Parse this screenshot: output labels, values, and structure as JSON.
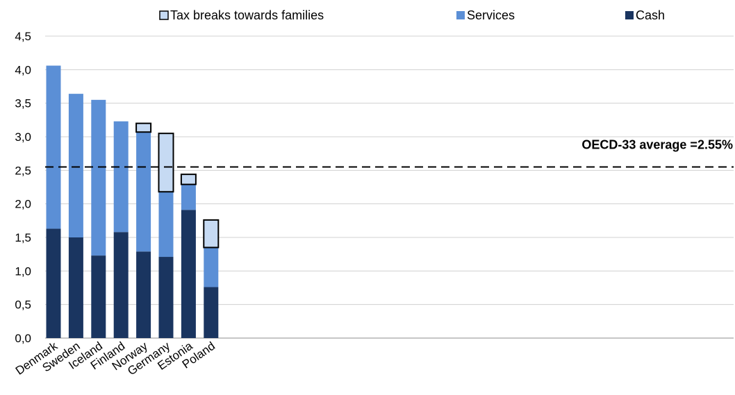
{
  "chart_data": {
    "type": "bar",
    "stacked": true,
    "categories": [
      "Denmark",
      "Sweden",
      "Iceland",
      "Finland",
      "Norway",
      "Germany",
      "Estonia",
      "Poland"
    ],
    "series": [
      {
        "name": "Cash",
        "color": "#1a3560",
        "values": [
          1.63,
          1.5,
          1.23,
          1.58,
          1.29,
          1.21,
          1.91,
          0.76
        ]
      },
      {
        "name": "Services",
        "color": "#5b8fd6",
        "values": [
          2.43,
          2.14,
          2.32,
          1.65,
          1.78,
          0.97,
          0.38,
          0.59
        ]
      },
      {
        "name": "Tax breaks towards families",
        "color": "#c6daf3",
        "values": [
          0.0,
          0.0,
          0.0,
          0.0,
          0.13,
          0.87,
          0.15,
          0.41
        ]
      }
    ],
    "legend": {
      "placement": "top",
      "order": [
        "Tax breaks towards families",
        "Services",
        "Cash"
      ]
    },
    "reference_line": {
      "value": 2.55,
      "label": "OECD-33 average =2.55%",
      "style": "dashed"
    },
    "ylim": [
      0,
      4.5
    ],
    "yticks": [
      "0,0",
      "0,5",
      "1,0",
      "1,5",
      "2,0",
      "2,5",
      "3,0",
      "3,5",
      "4,0",
      "4,5"
    ],
    "grid": true
  }
}
